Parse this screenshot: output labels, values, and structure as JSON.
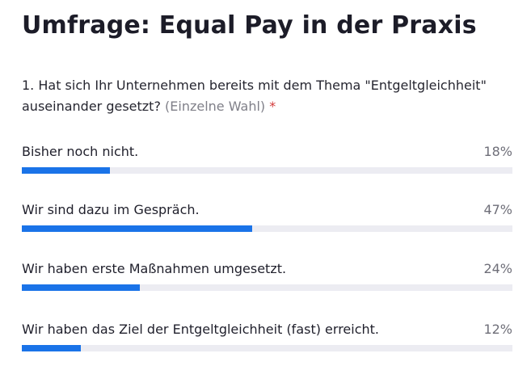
{
  "poll": {
    "title": "Umfrage: Equal Pay in der Praxis",
    "question": {
      "text": "1. Hat sich Ihr Unternehmen bereits mit dem Thema \"Entgeltgleichheit\" auseinander gesetzt?",
      "hint": "(Einzelne Wahl)",
      "required_marker": "*"
    },
    "options": [
      {
        "label": "Bisher noch nicht.",
        "percent_text": "18%",
        "percent": 18
      },
      {
        "label": "Wir sind dazu im Gespräch.",
        "percent_text": "47%",
        "percent": 47
      },
      {
        "label": "Wir haben erste Maßnahmen umgesetzt.",
        "percent_text": "24%",
        "percent": 24
      },
      {
        "label": "Wir haben das Ziel der Entgeltgleichheit (fast) erreicht.",
        "percent_text": "12%",
        "percent": 12
      }
    ]
  },
  "colors": {
    "bar_fill": "#1a73e8",
    "bar_track": "#ececf2",
    "required": "#d23a3a"
  }
}
